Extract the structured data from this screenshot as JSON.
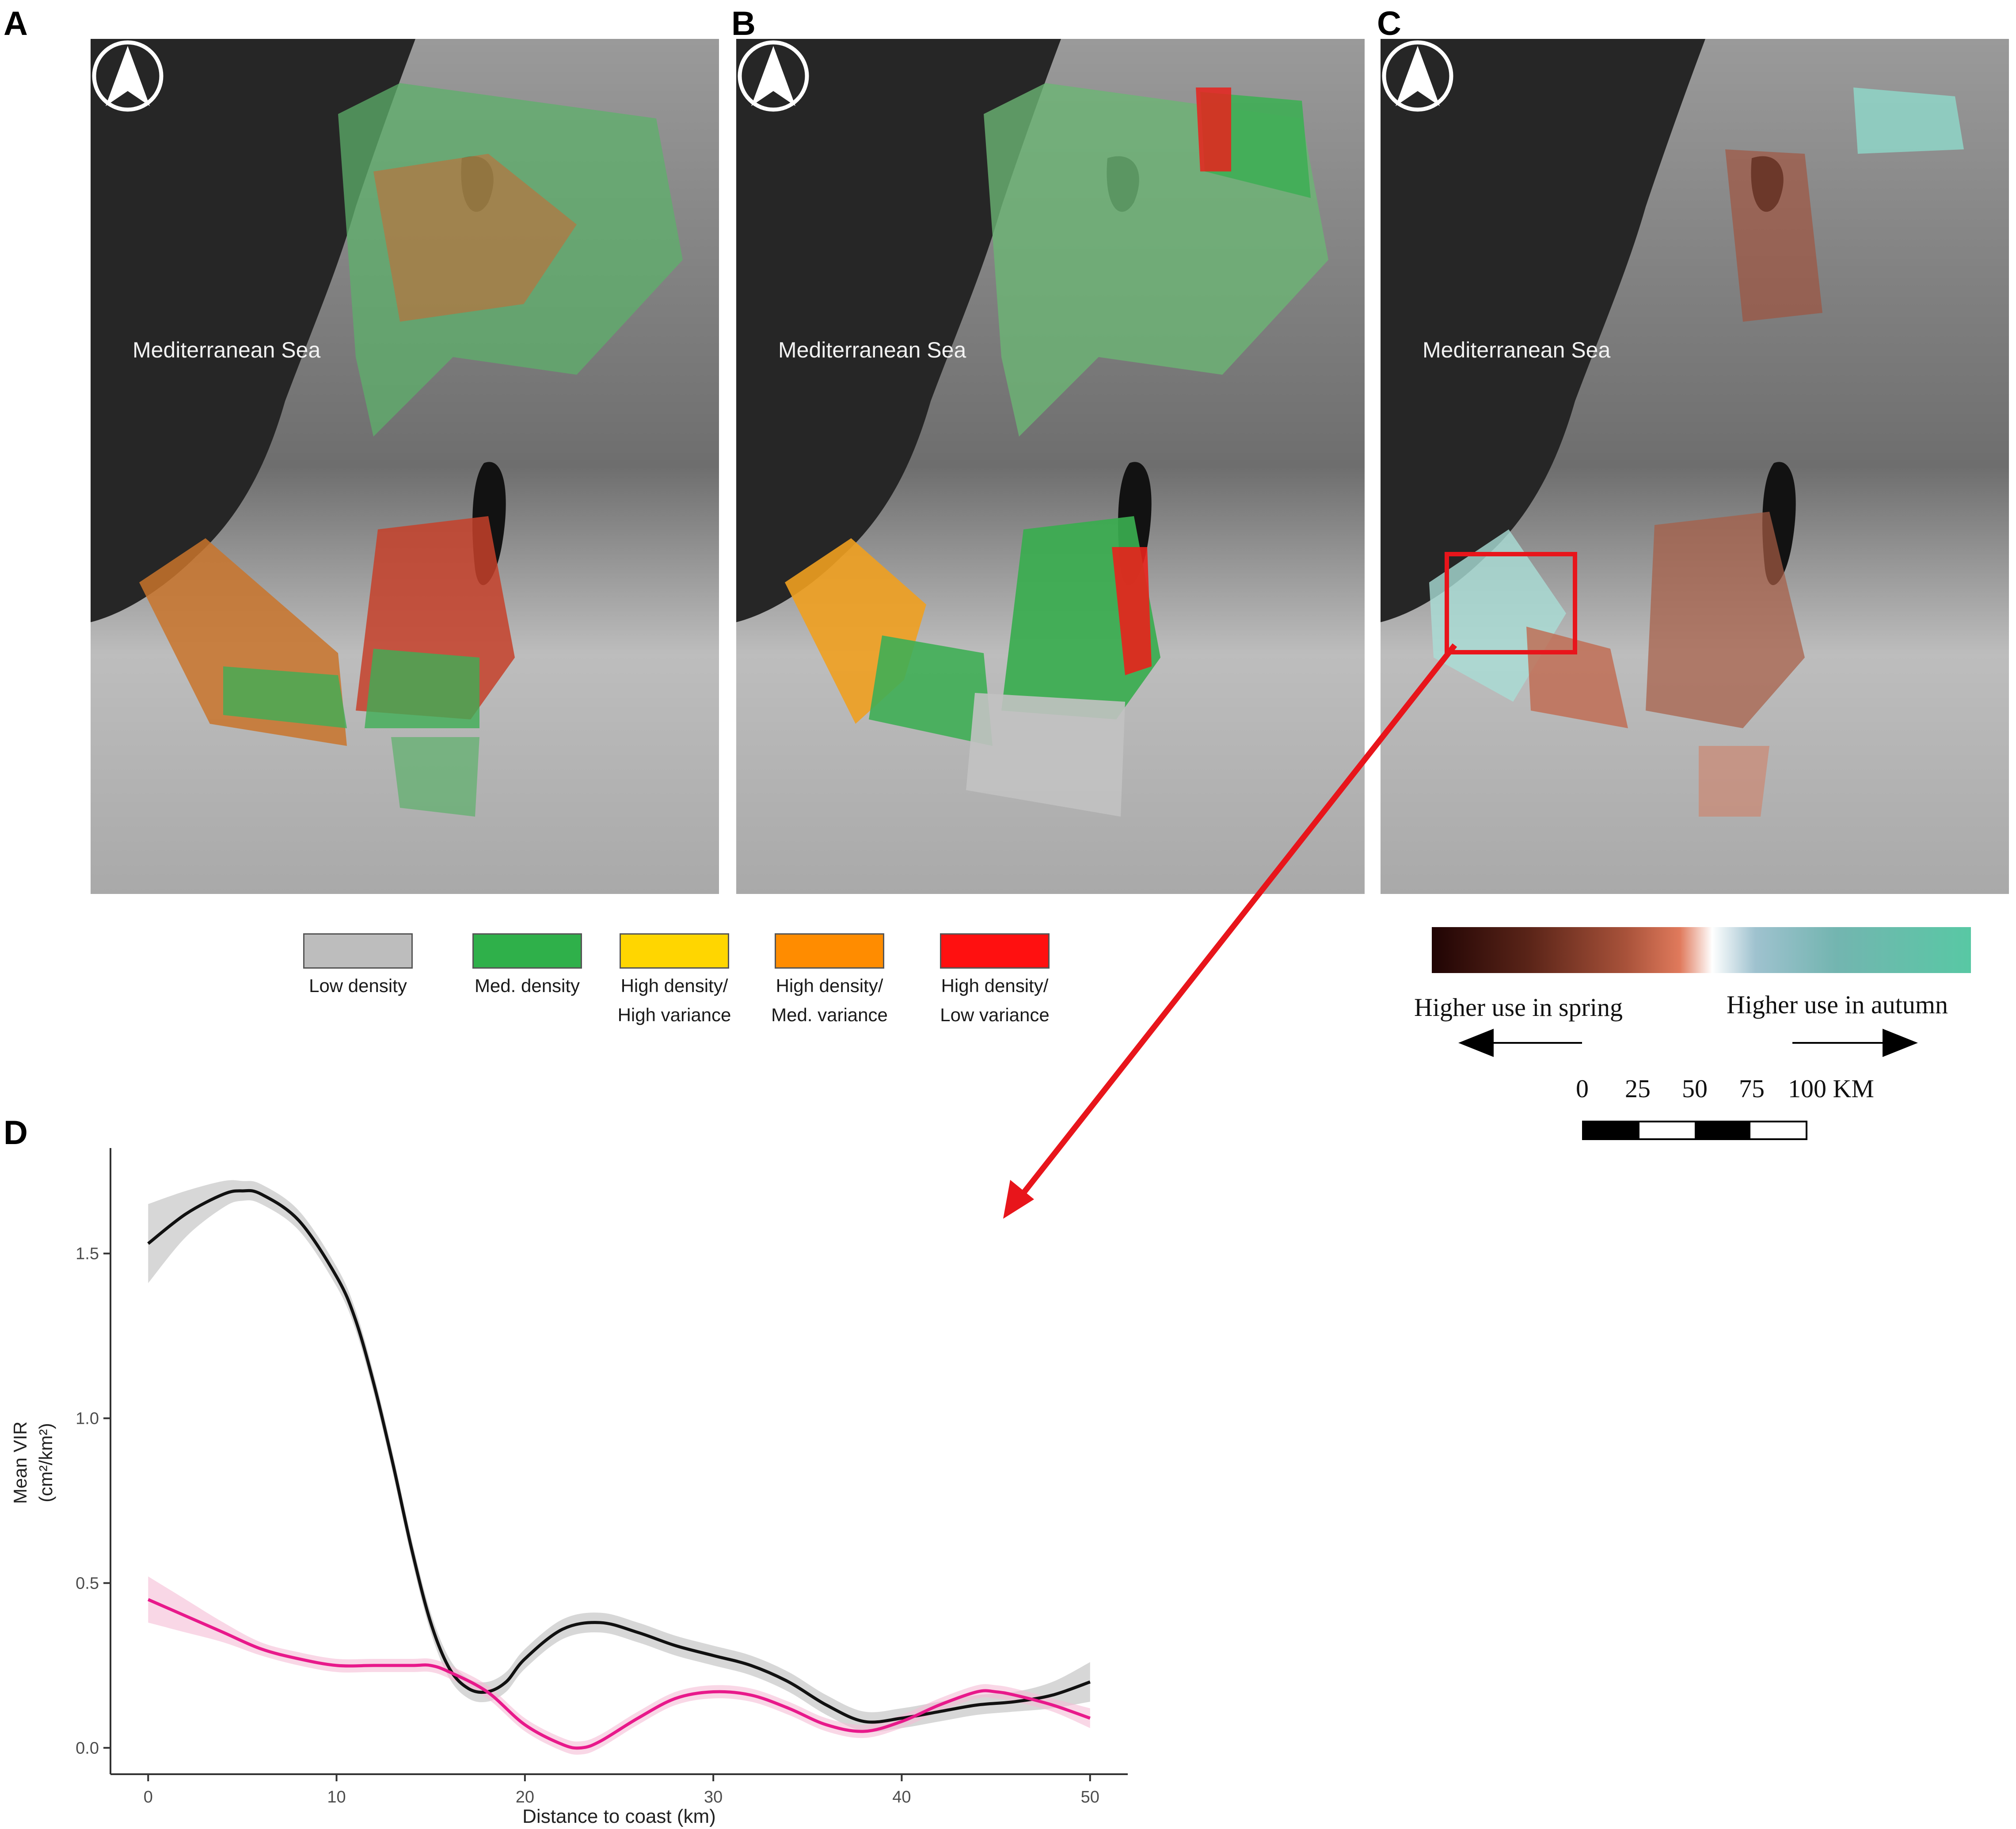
{
  "panels": {
    "a": {
      "letter": "A",
      "sea_label": "Mediterranean Sea"
    },
    "b": {
      "letter": "B",
      "sea_label": "Mediterranean Sea"
    },
    "c": {
      "letter": "C",
      "sea_label": "Mediterranean Sea"
    },
    "d": {
      "letter": "D"
    }
  },
  "density_legend": [
    {
      "label_1": "Low density",
      "label_2": "",
      "color": "#bdbdbd"
    },
    {
      "label_1": "Med. density",
      "label_2": "",
      "color": "#2fb04a"
    },
    {
      "label_1": "High density/",
      "label_2": "High variance",
      "color": "#ffd600"
    },
    {
      "label_1": "High density/",
      "label_2": "Med. variance",
      "color": "#ff8c00"
    },
    {
      "label_1": "High density/",
      "label_2": "Low variance",
      "color": "#ff1010"
    }
  ],
  "season_legend": {
    "spring_label": "Higher use in spring",
    "autumn_label": "Higher use in autumn",
    "spring_color": "#200404",
    "autumn_color": "#58c8a4"
  },
  "scale_bar": {
    "ticks": [
      "0",
      "25",
      "50",
      "75",
      "100 KM"
    ]
  },
  "highlight": {
    "color": "#e8151b"
  },
  "chart_data": {
    "type": "line",
    "xlabel": "Distance to coast (km)",
    "ylabel_line1": "Mean VIR",
    "ylabel_line2": "(cm²/km²)",
    "xlim": [
      -2,
      52
    ],
    "ylim": [
      -0.08,
      1.82
    ],
    "x_ticks": [
      0,
      10,
      20,
      30,
      40,
      50
    ],
    "y_ticks": [
      0.0,
      0.5,
      1.0,
      1.5
    ],
    "y_tick_labels": [
      "0.0",
      "0.5",
      "1.0",
      "1.5"
    ],
    "series": [
      {
        "color": "#111111",
        "band_color": "#bdbdbd",
        "x": [
          0,
          2,
          4,
          5,
          6,
          8,
          10,
          11,
          12,
          13,
          14,
          15,
          16,
          17,
          18,
          19,
          20,
          22,
          24,
          26,
          28,
          30,
          32,
          34,
          36,
          38,
          40,
          42,
          44,
          46,
          48,
          50
        ],
        "y": [
          1.53,
          1.62,
          1.68,
          1.69,
          1.68,
          1.6,
          1.43,
          1.3,
          1.1,
          0.86,
          0.6,
          0.38,
          0.24,
          0.18,
          0.17,
          0.2,
          0.27,
          0.36,
          0.38,
          0.35,
          0.31,
          0.28,
          0.25,
          0.2,
          0.13,
          0.08,
          0.09,
          0.11,
          0.13,
          0.14,
          0.16,
          0.2
        ],
        "band": [
          0.12,
          0.07,
          0.04,
          0.03,
          0.03,
          0.03,
          0.03,
          0.03,
          0.03,
          0.03,
          0.03,
          0.03,
          0.03,
          0.03,
          0.03,
          0.03,
          0.03,
          0.03,
          0.03,
          0.03,
          0.03,
          0.03,
          0.03,
          0.03,
          0.03,
          0.03,
          0.03,
          0.03,
          0.03,
          0.03,
          0.04,
          0.06
        ]
      },
      {
        "color": "#e8198b",
        "band_color": "#f5bcd6",
        "x": [
          0,
          2,
          4,
          6,
          8,
          10,
          12,
          14,
          15,
          16,
          18,
          20,
          22,
          23,
          24,
          26,
          28,
          30,
          32,
          34,
          36,
          38,
          40,
          42,
          44,
          45,
          46,
          48,
          50
        ],
        "y": [
          0.45,
          0.4,
          0.35,
          0.3,
          0.27,
          0.25,
          0.25,
          0.25,
          0.25,
          0.23,
          0.17,
          0.07,
          0.01,
          0.0,
          0.02,
          0.09,
          0.15,
          0.17,
          0.16,
          0.12,
          0.07,
          0.05,
          0.08,
          0.13,
          0.17,
          0.17,
          0.16,
          0.13,
          0.09
        ],
        "band": [
          0.07,
          0.05,
          0.03,
          0.02,
          0.02,
          0.02,
          0.02,
          0.02,
          0.02,
          0.02,
          0.02,
          0.02,
          0.02,
          0.02,
          0.02,
          0.02,
          0.02,
          0.02,
          0.02,
          0.02,
          0.02,
          0.02,
          0.02,
          0.02,
          0.02,
          0.02,
          0.02,
          0.02,
          0.03
        ]
      }
    ]
  }
}
